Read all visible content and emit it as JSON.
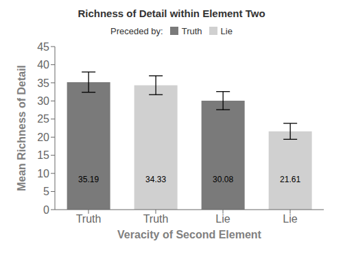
{
  "chart_data": {
    "type": "bar",
    "title": "Richness of Detail within Element Two",
    "xlabel": "Veracity of Second Element",
    "ylabel": "Mean Richness of Detail",
    "categories": [
      "Truth",
      "Truth",
      "Lie",
      "Lie"
    ],
    "series": [
      {
        "name": "Truth",
        "color": "#7a7a7a",
        "values": [
          35.19,
          null,
          30.08,
          null
        ],
        "errors": [
          2.8,
          null,
          2.5,
          null
        ]
      },
      {
        "name": "Lie",
        "color": "#d0d0d0",
        "values": [
          null,
          34.33,
          null,
          21.61
        ],
        "errors": [
          null,
          2.6,
          null,
          2.2
        ]
      }
    ],
    "ylim": [
      0,
      45
    ],
    "yticks": [
      0,
      5,
      10,
      15,
      20,
      25,
      30,
      35,
      40,
      45
    ],
    "grid": false,
    "data_labels": true,
    "annotations": [
      "Preceded by:"
    ]
  }
}
